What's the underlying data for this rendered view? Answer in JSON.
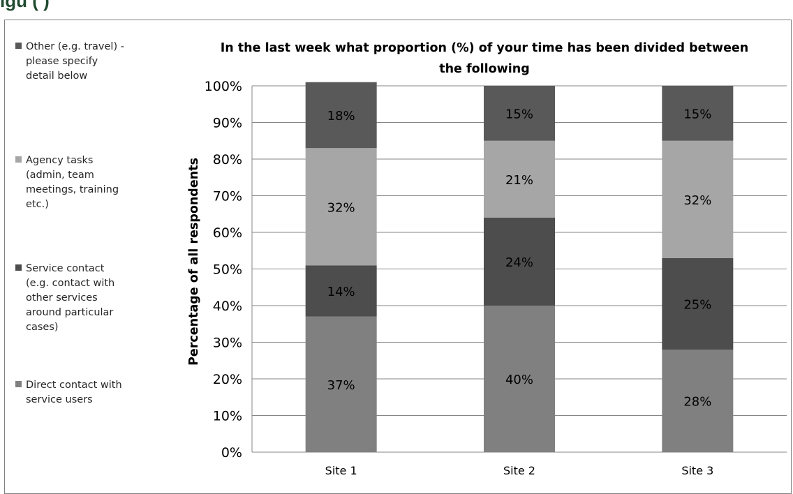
{
  "page": {
    "heading": "igu                                                (                                  )"
  },
  "chart_data": {
    "type": "bar",
    "stacked": true,
    "title": "In the last week what proportion  (%) of your time has been divided between the following",
    "title_lines": [
      "In the last week what proportion  (%) of your time has been divided between",
      "the following"
    ],
    "ylabel": "Percentage of all respondents",
    "xlabel": "",
    "ylim": [
      0,
      100
    ],
    "yticks": [
      "0%",
      "10%",
      "20%",
      "30%",
      "40%",
      "50%",
      "60%",
      "70%",
      "80%",
      "90%",
      "100%"
    ],
    "grid": true,
    "legend_position": "left",
    "categories": [
      "Site 1",
      "Site 2",
      "Site 3"
    ],
    "series": [
      {
        "name": "Direct contact with service users",
        "name_lines": [
          "Direct contact with",
          "service users"
        ],
        "color": "#808080",
        "values": [
          37,
          40,
          28
        ],
        "labels": [
          "37%",
          "40%",
          "28%"
        ]
      },
      {
        "name": "Service contact (e.g. contact with other services around particular cases)",
        "name_lines": [
          "Service contact",
          "(e.g. contact with",
          "other services",
          "around particular",
          "cases)"
        ],
        "color": "#4d4d4d",
        "values": [
          14,
          24,
          25
        ],
        "labels": [
          "14%",
          "24%",
          "25%"
        ]
      },
      {
        "name": "Agency tasks (admin, team meetings, training etc.)",
        "name_lines": [
          "Agency tasks",
          "(admin, team",
          "meetings, training",
          "etc.)"
        ],
        "color": "#a6a6a6",
        "values": [
          32,
          21,
          32
        ],
        "labels": [
          "32%",
          "21%",
          "32%"
        ]
      },
      {
        "name": "Other (e.g. travel) - please specify detail below",
        "name_lines": [
          "Other (e.g. travel) -",
          "please specify",
          "detail below"
        ],
        "color": "#595959",
        "values": [
          18,
          15,
          15
        ],
        "labels": [
          "18%",
          "15%",
          "15%"
        ]
      }
    ]
  }
}
